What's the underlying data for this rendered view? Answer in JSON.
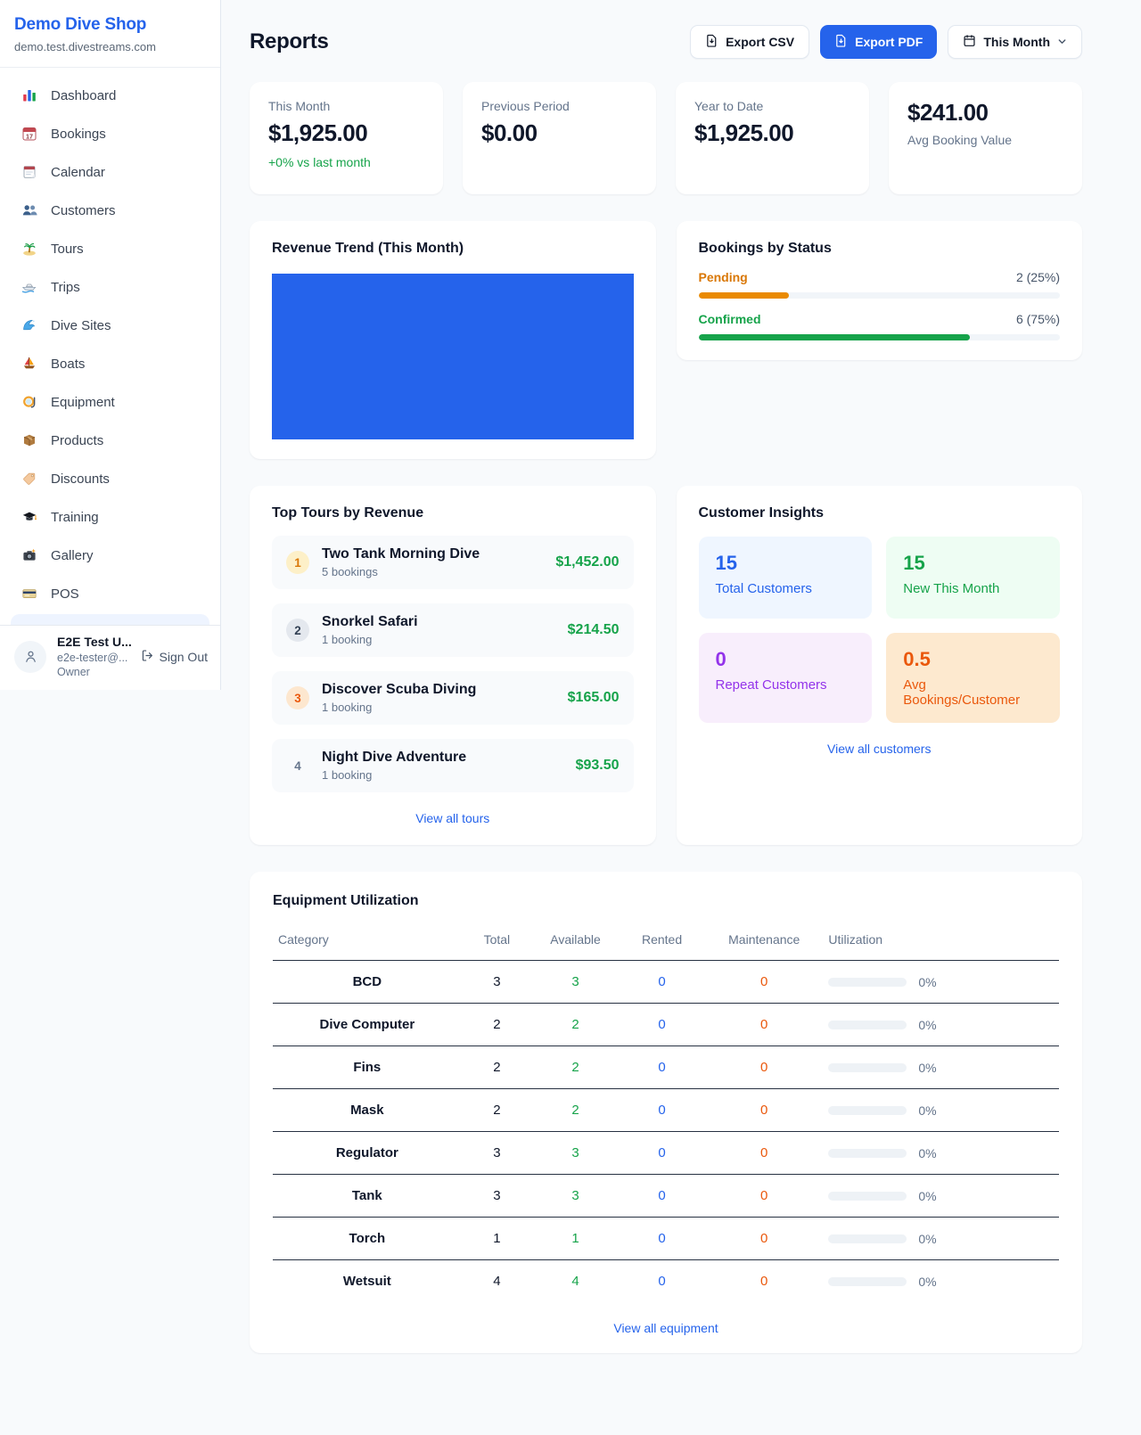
{
  "colors": {
    "accent": "#2563eb",
    "positive_green": "#16a34a",
    "pending_orange": "#d97706",
    "maintenance_orange": "#ea580c",
    "revenue_bar_blue": "#2563eb",
    "repeat_purple": "#9333ea"
  },
  "sidebar": {
    "shop_name": "Demo Dive Shop",
    "shop_domain": "demo.test.divestreams.com",
    "nav": [
      {
        "icon": "bar-chart-icon",
        "label": "Dashboard"
      },
      {
        "icon": "calendar-17-icon",
        "label": "Bookings"
      },
      {
        "icon": "notepad-icon",
        "label": "Calendar"
      },
      {
        "icon": "people-icon",
        "label": "Customers"
      },
      {
        "icon": "palm-island-icon",
        "label": "Tours"
      },
      {
        "icon": "speedboat-icon",
        "label": "Trips"
      },
      {
        "icon": "wave-icon",
        "label": "Dive Sites"
      },
      {
        "icon": "sailboat-icon",
        "label": "Boats"
      },
      {
        "icon": "dive-mask-icon",
        "label": "Equipment"
      },
      {
        "icon": "package-icon",
        "label": "Products"
      },
      {
        "icon": "tag-icon",
        "label": "Discounts"
      },
      {
        "icon": "grad-cap-icon",
        "label": "Training"
      },
      {
        "icon": "camera-icon",
        "label": "Gallery"
      },
      {
        "icon": "credit-card-icon",
        "label": "POS"
      }
    ],
    "user": {
      "name": "E2E Test U...",
      "email": "e2e-tester@...",
      "role": "Owner",
      "sign_out_label": "Sign Out"
    }
  },
  "header": {
    "title": "Reports",
    "export_csv_label": "Export CSV",
    "export_pdf_label": "Export PDF",
    "period_label": "This Month"
  },
  "stats": [
    {
      "label": "This Month",
      "value": "$1,925.00",
      "delta": "+0% vs last month"
    },
    {
      "label": "Previous Period",
      "value": "$0.00"
    },
    {
      "label": "Year to Date",
      "value": "$1,925.00"
    },
    {
      "label": "Avg Booking Value",
      "value": "$241.00",
      "value_first": true
    }
  ],
  "revenue_trend": {
    "title": "Revenue Trend (This Month)",
    "chart": {
      "type": "bar",
      "note": "single full-width bar, no axes shown",
      "fill_pct": 100,
      "color": "#2563eb"
    }
  },
  "bookings_by_status": {
    "title": "Bookings by Status",
    "rows": [
      {
        "label": "Pending",
        "count_text": "2 (25%)",
        "pct": 25,
        "theme": "amber"
      },
      {
        "label": "Confirmed",
        "count_text": "6 (75%)",
        "pct": 75,
        "theme": "green"
      }
    ]
  },
  "top_tours": {
    "title": "Top Tours by Revenue",
    "rows": [
      {
        "rank": "1",
        "name": "Two Tank Morning Dive",
        "bookings": "5 bookings",
        "amount": "$1,452.00"
      },
      {
        "rank": "2",
        "name": "Snorkel Safari",
        "bookings": "1 booking",
        "amount": "$214.50"
      },
      {
        "rank": "3",
        "name": "Discover Scuba Diving",
        "bookings": "1 booking",
        "amount": "$165.00"
      },
      {
        "rank": "4",
        "name": "Night Dive Adventure",
        "bookings": "1 booking",
        "amount": "$93.50"
      }
    ],
    "view_all_label": "View all tours"
  },
  "customer_insights": {
    "title": "Customer Insights",
    "tiles": [
      {
        "value": "15",
        "label": "Total Customers",
        "theme": "blue"
      },
      {
        "value": "15",
        "label": "New This Month",
        "theme": "green"
      },
      {
        "value": "0",
        "label": "Repeat Customers",
        "theme": "purple"
      },
      {
        "value": "0.5",
        "label": "Avg Bookings/Customer",
        "theme": "orange"
      }
    ],
    "view_all_label": "View all customers"
  },
  "equipment": {
    "title": "Equipment Utilization",
    "columns": [
      "Category",
      "Total",
      "Available",
      "Rented",
      "Maintenance",
      "Utilization"
    ],
    "rows": [
      {
        "category": "BCD",
        "total": "3",
        "available": "3",
        "rented": "0",
        "maintenance": "0",
        "utilization": "0%"
      },
      {
        "category": "Dive Computer",
        "total": "2",
        "available": "2",
        "rented": "0",
        "maintenance": "0",
        "utilization": "0%"
      },
      {
        "category": "Fins",
        "total": "2",
        "available": "2",
        "rented": "0",
        "maintenance": "0",
        "utilization": "0%"
      },
      {
        "category": "Mask",
        "total": "2",
        "available": "2",
        "rented": "0",
        "maintenance": "0",
        "utilization": "0%"
      },
      {
        "category": "Regulator",
        "total": "3",
        "available": "3",
        "rented": "0",
        "maintenance": "0",
        "utilization": "0%"
      },
      {
        "category": "Tank",
        "total": "3",
        "available": "3",
        "rented": "0",
        "maintenance": "0",
        "utilization": "0%"
      },
      {
        "category": "Torch",
        "total": "1",
        "available": "1",
        "rented": "0",
        "maintenance": "0",
        "utilization": "0%"
      },
      {
        "category": "Wetsuit",
        "total": "4",
        "available": "4",
        "rented": "0",
        "maintenance": "0",
        "utilization": "0%"
      }
    ],
    "view_all_label": "View all equipment"
  }
}
